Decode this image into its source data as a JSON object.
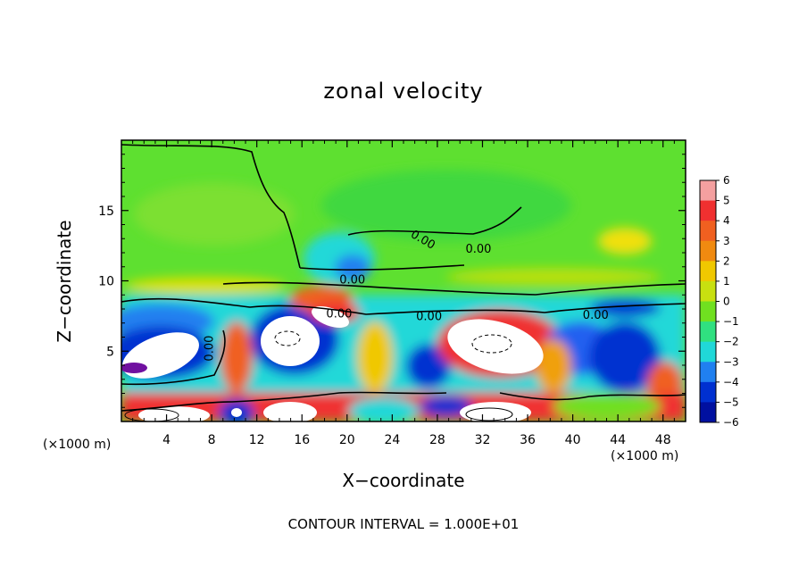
{
  "chart_data": {
    "type": "heatmap",
    "title": "zonal velocity",
    "xlabel": "X−coordinate",
    "ylabel": "Z−coordinate",
    "x_scale_label": "(×1000 m)",
    "x_scale_label_right": "(×1000 m)",
    "footer": "CONTOUR INTERVAL = 1.000E+01",
    "xlim": [
      0,
      50
    ],
    "ylim": [
      0,
      20
    ],
    "x_ticks": [
      4,
      8,
      12,
      16,
      20,
      24,
      28,
      32,
      36,
      40,
      44,
      48
    ],
    "y_ticks": [
      5,
      10,
      15
    ],
    "colorbar": {
      "levels": [
        6,
        5,
        4,
        3,
        2,
        1,
        0,
        -1,
        -2,
        -3,
        -4,
        -5,
        -6
      ],
      "labels": [
        "6",
        "5",
        "4",
        "3",
        "2",
        "1",
        "0",
        "−1",
        "−2",
        "−3",
        "−4",
        "−5",
        "−6"
      ],
      "colors": [
        "#f4a0a0",
        "#f03030",
        "#f06020",
        "#f08a10",
        "#f0c800",
        "#c8e010",
        "#70e020",
        "#30e080",
        "#20d8d8",
        "#2080f0",
        "#0030d0",
        "#0010a0",
        "#7010a0"
      ]
    },
    "contour_labels": [
      {
        "text": "0.00",
        "x": 34,
        "z": 12.7
      },
      {
        "text": "0.00",
        "x": 40.5,
        "z": 12.0
      },
      {
        "text": "0.00",
        "x": 26.2,
        "z": 9.8
      },
      {
        "text": "0.00",
        "x": 24.7,
        "z": 7.4
      },
      {
        "text": "0.00",
        "x": 34.9,
        "z": 7.2
      },
      {
        "text": "0.00",
        "x": 53.8,
        "z": 7.3
      },
      {
        "text": "0.00",
        "x": 10.4,
        "z": 5.2
      }
    ]
  }
}
